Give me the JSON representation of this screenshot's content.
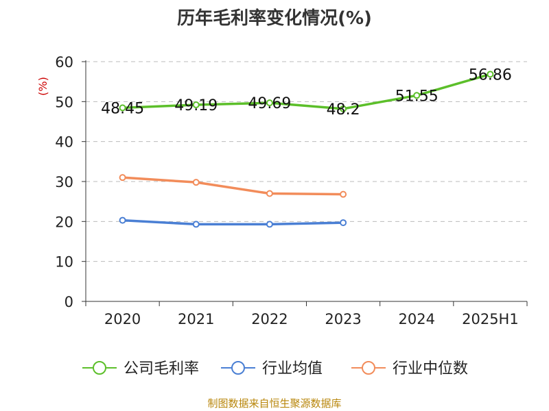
{
  "title": "历年毛利率变化情况(%)",
  "source": "制图数据来自恒生聚源数据库",
  "colors": {
    "company": "#5cbf2a",
    "industry_avg": "#4a7fd4",
    "industry_median": "#f28c5a",
    "unit": "#cc0000",
    "grid": "#bbbbbb",
    "axis": "#333333"
  },
  "chart_data": {
    "type": "line",
    "title": "历年毛利率变化情况(%)",
    "xlabel": "",
    "ylabel": "(%)",
    "categories": [
      "2020",
      "2021",
      "2022",
      "2023",
      "2024",
      "2025H1"
    ],
    "ylim": [
      0,
      60
    ],
    "yticks": [
      0,
      10,
      20,
      30,
      40,
      50,
      60
    ],
    "grid": true,
    "legend_position": "bottom",
    "series": [
      {
        "name": "公司毛利率",
        "values": [
          48.45,
          49.19,
          49.69,
          48.2,
          51.55,
          56.86
        ],
        "labels": [
          "48.45",
          "49.19",
          "49.69",
          "48.2",
          "51.55",
          "56.86"
        ],
        "color_key": "company"
      },
      {
        "name": "行业均值",
        "values": [
          20.3,
          19.3,
          19.3,
          19.7,
          null,
          null
        ],
        "color_key": "industry_avg"
      },
      {
        "name": "行业中位数",
        "values": [
          31.0,
          29.8,
          27.0,
          26.8,
          null,
          null
        ],
        "color_key": "industry_median"
      }
    ]
  }
}
